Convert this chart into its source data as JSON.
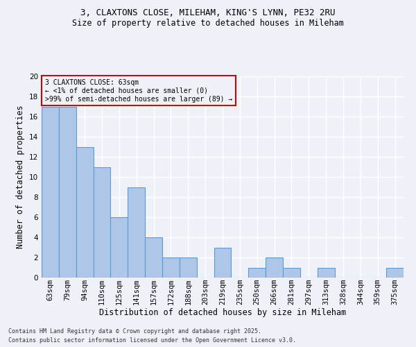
{
  "title_line1": "3, CLAXTONS CLOSE, MILEHAM, KING'S LYNN, PE32 2RU",
  "title_line2": "Size of property relative to detached houses in Mileham",
  "xlabel": "Distribution of detached houses by size in Mileham",
  "ylabel": "Number of detached properties",
  "footnote_line1": "Contains HM Land Registry data © Crown copyright and database right 2025.",
  "footnote_line2": "Contains public sector information licensed under the Open Government Licence v3.0.",
  "annotation_line1": "3 CLAXTONS CLOSE: 63sqm",
  "annotation_line2": "← <1% of detached houses are smaller (0)",
  "annotation_line3": ">99% of semi-detached houses are larger (89) →",
  "bar_labels": [
    "63sqm",
    "79sqm",
    "94sqm",
    "110sqm",
    "125sqm",
    "141sqm",
    "157sqm",
    "172sqm",
    "188sqm",
    "203sqm",
    "219sqm",
    "235sqm",
    "250sqm",
    "266sqm",
    "281sqm",
    "297sqm",
    "313sqm",
    "328sqm",
    "344sqm",
    "359sqm",
    "375sqm"
  ],
  "bar_values": [
    17,
    17,
    13,
    11,
    6,
    9,
    4,
    2,
    2,
    0,
    3,
    0,
    1,
    2,
    1,
    0,
    1,
    0,
    0,
    0,
    1
  ],
  "bar_color": "#aec6e8",
  "bar_edge_color": "#5b9bd5",
  "annotation_box_edge_color": "#cc0000",
  "background_color": "#eef2f8",
  "grid_color": "#ffffff",
  "ylim": [
    0,
    20
  ],
  "yticks": [
    0,
    2,
    4,
    6,
    8,
    10,
    12,
    14,
    16,
    18,
    20
  ],
  "title_fontsize": 9,
  "subtitle_fontsize": 8.5,
  "xlabel_fontsize": 8.5,
  "ylabel_fontsize": 8.5,
  "tick_fontsize": 7.5,
  "annotation_fontsize": 7,
  "footnote_fontsize": 6
}
